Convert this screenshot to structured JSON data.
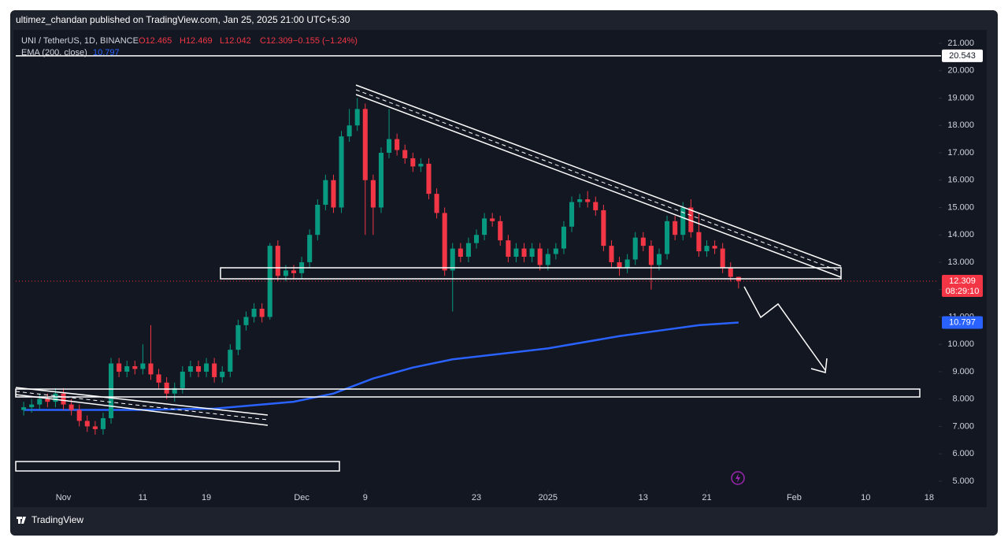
{
  "header": {
    "title": "ultimez_chandan published on TradingView.com, Jan 25, 2025 21:00 UTC+5:30"
  },
  "legend": {
    "symbol": "UNI / TetherUS, 1D, BINANCE",
    "ohlc": [
      "O12.465",
      "H12.469",
      "L12.042",
      "C12.309",
      "−0.155 (−1.24%)"
    ]
  },
  "countdown": "08:29:10",
  "footer": "TradingView",
  "chart_data": {
    "type": "candlestick",
    "up_color": "#089981",
    "down_color": "#f23645",
    "x": [
      "2024-10-27",
      "2024-10-28",
      "2024-10-29",
      "2024-10-30",
      "2024-10-31",
      "2024-11-01",
      "2024-11-02",
      "2024-11-03",
      "2024-11-04",
      "2024-11-05",
      "2024-11-06",
      "2024-11-07",
      "2024-11-08",
      "2024-11-09",
      "2024-11-10",
      "2024-11-11",
      "2024-11-12",
      "2024-11-13",
      "2024-11-14",
      "2024-11-15",
      "2024-11-16",
      "2024-11-17",
      "2024-11-18",
      "2024-11-19",
      "2024-11-20",
      "2024-11-21",
      "2024-11-22",
      "2024-11-23",
      "2024-11-24",
      "2024-11-25",
      "2024-11-26",
      "2024-11-27",
      "2024-11-28",
      "2024-11-29",
      "2024-11-30",
      "2024-12-01",
      "2024-12-02",
      "2024-12-03",
      "2024-12-04",
      "2024-12-05",
      "2024-12-06",
      "2024-12-07",
      "2024-12-08",
      "2024-12-09",
      "2024-12-10",
      "2024-12-11",
      "2024-12-12",
      "2024-12-13",
      "2024-12-14",
      "2024-12-15",
      "2024-12-16",
      "2024-12-17",
      "2024-12-18",
      "2024-12-19",
      "2024-12-20",
      "2024-12-21",
      "2024-12-22",
      "2024-12-23",
      "2024-12-24",
      "2024-12-25",
      "2024-12-26",
      "2024-12-27",
      "2024-12-28",
      "2024-12-29",
      "2024-12-30",
      "2024-12-31",
      "2025-01-01",
      "2025-01-02",
      "2025-01-03",
      "2025-01-04",
      "2025-01-05",
      "2025-01-06",
      "2025-01-07",
      "2025-01-08",
      "2025-01-09",
      "2025-01-10",
      "2025-01-11",
      "2025-01-12",
      "2025-01-13",
      "2025-01-14",
      "2025-01-15",
      "2025-01-16",
      "2025-01-17",
      "2025-01-18",
      "2025-01-19",
      "2025-01-20",
      "2025-01-21",
      "2025-01-22",
      "2025-01-23",
      "2025-01-24",
      "2025-01-25"
    ],
    "open": [
      7.6,
      7.7,
      7.8,
      8.0,
      7.9,
      8.2,
      7.8,
      7.6,
      7.2,
      7.0,
      6.9,
      7.3,
      9.3,
      9.0,
      9.2,
      9.1,
      9.3,
      8.9,
      8.6,
      8.2,
      8.4,
      9.0,
      9.2,
      9.0,
      9.3,
      8.8,
      9.0,
      9.8,
      10.7,
      11.0,
      11.3,
      11.0,
      13.6,
      12.5,
      12.7,
      12.6,
      13.0,
      14.0,
      15.1,
      16.0,
      15.0,
      17.6,
      18.0,
      18.6,
      16.0,
      15.0,
      17.0,
      17.5,
      17.1,
      16.8,
      16.5,
      16.6,
      15.5,
      14.8,
      12.7,
      13.5,
      13.2,
      13.7,
      14.0,
      14.6,
      14.5,
      13.8,
      13.2,
      13.5,
      13.2,
      13.5,
      12.9,
      13.3,
      13.5,
      14.3,
      15.2,
      15.3,
      15.2,
      14.9,
      13.6,
      13.0,
      12.8,
      13.1,
      13.9,
      13.6,
      12.9,
      13.3,
      14.5,
      14.0,
      15.0,
      14.1,
      13.4,
      13.6,
      13.5,
      12.8,
      12.465
    ],
    "high": [
      7.9,
      8.0,
      8.2,
      8.2,
      8.4,
      8.4,
      8.0,
      7.8,
      7.4,
      7.2,
      7.5,
      9.5,
      9.5,
      9.4,
      9.4,
      10.0,
      10.7,
      9.1,
      8.8,
      8.6,
      9.2,
      9.4,
      9.4,
      9.5,
      9.5,
      9.2,
      10.0,
      10.9,
      11.2,
      11.5,
      11.5,
      13.7,
      13.8,
      12.9,
      12.9,
      13.2,
      14.2,
      15.3,
      16.2,
      16.2,
      17.8,
      18.6,
      19.0,
      18.8,
      16.2,
      17.2,
      18.6,
      17.7,
      17.3,
      17.0,
      16.8,
      16.8,
      15.7,
      15.0,
      13.7,
      13.7,
      13.9,
      14.2,
      14.8,
      14.8,
      14.7,
      14.0,
      13.7,
      13.7,
      13.7,
      13.7,
      13.5,
      13.7,
      14.5,
      15.4,
      15.5,
      15.6,
      15.4,
      15.1,
      13.8,
      13.2,
      13.3,
      14.1,
      14.1,
      13.8,
      13.5,
      14.7,
      14.7,
      15.2,
      15.3,
      14.8,
      13.8,
      13.8,
      13.7,
      13.0,
      12.469
    ],
    "low": [
      7.4,
      7.5,
      7.6,
      7.7,
      7.7,
      7.6,
      7.4,
      7.0,
      6.8,
      6.7,
      6.7,
      7.1,
      8.8,
      8.8,
      8.9,
      8.9,
      8.7,
      8.4,
      8.0,
      7.9,
      8.2,
      8.8,
      8.8,
      8.8,
      8.6,
      8.6,
      8.8,
      9.6,
      10.5,
      10.8,
      10.8,
      10.9,
      12.3,
      12.3,
      12.4,
      12.4,
      12.8,
      13.8,
      14.9,
      14.8,
      14.8,
      17.4,
      17.8,
      14.0,
      14.0,
      14.8,
      16.8,
      16.9,
      16.6,
      16.3,
      16.3,
      15.3,
      14.6,
      12.5,
      11.2,
      13.0,
      13.0,
      13.5,
      13.8,
      14.3,
      13.6,
      13.0,
      13.0,
      13.0,
      13.0,
      12.7,
      12.7,
      13.1,
      13.3,
      14.1,
      15.0,
      15.0,
      14.7,
      13.4,
      12.8,
      12.5,
      12.6,
      12.9,
      13.4,
      12.0,
      12.7,
      13.1,
      13.8,
      13.8,
      13.9,
      13.2,
      13.2,
      13.3,
      12.6,
      12.3,
      12.042
    ],
    "close": [
      7.7,
      7.8,
      8.0,
      7.9,
      8.2,
      7.8,
      7.6,
      7.2,
      7.0,
      6.9,
      7.3,
      9.3,
      9.0,
      9.2,
      9.1,
      9.3,
      8.9,
      8.6,
      8.2,
      8.4,
      9.0,
      9.2,
      9.0,
      9.3,
      8.8,
      9.0,
      9.8,
      10.7,
      11.0,
      11.3,
      11.0,
      13.6,
      12.5,
      12.7,
      12.6,
      13.0,
      14.0,
      15.1,
      16.0,
      15.0,
      17.6,
      18.0,
      18.6,
      16.0,
      15.0,
      17.0,
      17.5,
      17.1,
      16.8,
      16.5,
      16.6,
      15.5,
      14.8,
      12.7,
      13.5,
      13.2,
      13.7,
      14.0,
      14.6,
      14.5,
      13.8,
      13.2,
      13.5,
      13.2,
      13.5,
      12.9,
      13.3,
      13.5,
      14.3,
      15.2,
      15.3,
      15.2,
      14.9,
      13.6,
      13.0,
      12.8,
      13.1,
      13.9,
      13.6,
      12.9,
      13.3,
      14.5,
      14.0,
      15.0,
      14.1,
      13.4,
      13.6,
      13.5,
      12.8,
      12.465,
      12.309
    ],
    "series": [
      {
        "name": "EMA (200, close)",
        "color": "#2962ff",
        "x": [
          "2024-10-27",
          "2024-11-01",
          "2024-11-10",
          "2024-11-20",
          "2024-11-30",
          "2024-12-05",
          "2024-12-10",
          "2024-12-15",
          "2024-12-20",
          "2025-01-01",
          "2025-01-10",
          "2025-01-15",
          "2025-01-20",
          "2025-01-25"
        ],
        "values": [
          7.6,
          7.6,
          7.6,
          7.65,
          7.9,
          8.2,
          8.75,
          9.15,
          9.45,
          9.85,
          10.3,
          10.5,
          10.7,
          10.797
        ]
      }
    ],
    "hline": {
      "value": 20.543,
      "label": "20.543"
    },
    "xlim": [
      "2024-10-26",
      "2025-02-19"
    ],
    "xticks": [
      {
        "value": "2024-11-01",
        "label": "Nov"
      },
      {
        "value": "2024-11-11",
        "label": "11"
      },
      {
        "value": "2024-11-19",
        "label": "19"
      },
      {
        "value": "2024-12-01",
        "label": "Dec"
      },
      {
        "value": "2024-12-09",
        "label": "9"
      },
      {
        "value": "2024-12-23",
        "label": "23"
      },
      {
        "value": "2025-01-01",
        "label": "2025"
      },
      {
        "value": "2025-01-13",
        "label": "13"
      },
      {
        "value": "2025-01-21",
        "label": "21"
      },
      {
        "value": "2025-02-01",
        "label": "Feb"
      },
      {
        "value": "2025-02-10",
        "label": "10"
      },
      {
        "value": "2025-02-18",
        "label": "18"
      }
    ],
    "ylim": [
      4.68,
      21.49
    ],
    "yticks": [
      {
        "value": 5,
        "label": "5.000"
      },
      {
        "value": 6,
        "label": "6.000"
      },
      {
        "value": 7,
        "label": "7.000"
      },
      {
        "value": 8,
        "label": "8.000"
      },
      {
        "value": 9,
        "label": "9.000"
      },
      {
        "value": 10,
        "label": "10.000"
      },
      {
        "value": 11,
        "label": "11.000"
      },
      {
        "value": 12,
        "label": "12.000"
      },
      {
        "value": 13,
        "label": "13.000"
      },
      {
        "value": 14,
        "label": "14.000"
      },
      {
        "value": 15,
        "label": "15.000"
      },
      {
        "value": 16,
        "label": "16.000"
      },
      {
        "value": 17,
        "label": "17.000"
      },
      {
        "value": 18,
        "label": "18.000"
      },
      {
        "value": 19,
        "label": "19.000"
      },
      {
        "value": 20,
        "label": "20.000"
      },
      {
        "value": 21,
        "label": "21.000"
      }
    ]
  }
}
